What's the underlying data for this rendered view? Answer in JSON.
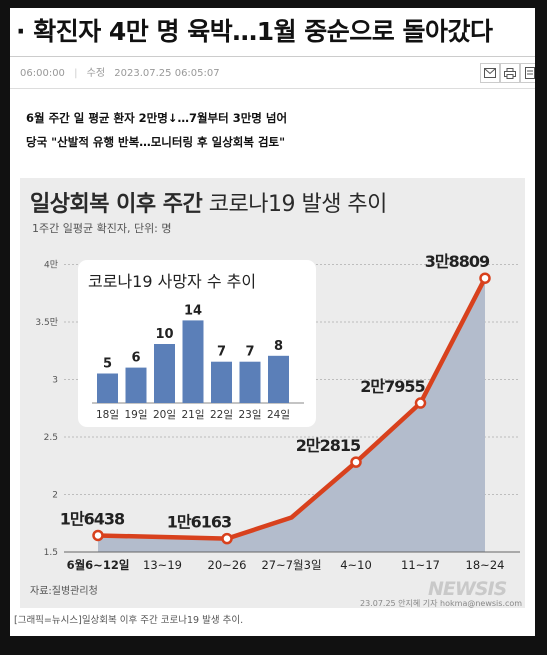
{
  "article": {
    "headline": "· 확진자 4만 명 육박…1월 중순으로 돌아갔다",
    "published_time": "06:00:00",
    "updated_label": "수정",
    "updated_datetime": "2023.07.25 06:05:07",
    "summary_lines": [
      "6월 주간 일 평균 환자 2만명↓…7월부터 3만명 넘어",
      "당국 \"산발적 유행 반복…모니터링 후 일상회복 검토\""
    ],
    "tools": [
      {
        "name": "email",
        "icon": "envelope-icon"
      },
      {
        "name": "print",
        "icon": "printer-icon"
      },
      {
        "name": "more",
        "icon": "document-icon"
      }
    ],
    "caption": "[그래픽=뉴시스]일상회복 이후 주간 코로나19 발생 추이."
  },
  "graphic": {
    "title_bold": "일상회복 이후 주간",
    "title_light": " 코로나19 발생 추이",
    "subtitle": "1주간 일평균 확진자, 단위: 명",
    "source": "자료:질병관리청",
    "credit": "23.07.25 안지혜 기자 hokma@newsis.com",
    "watermark": "NEWSIS",
    "colors": {
      "line": "#d8411d",
      "area": "#b3bccc",
      "inset_bar": "#5b7fb8",
      "background": "#ececec"
    }
  },
  "chart_data": [
    {
      "type": "area",
      "title": "일상회복 이후 주간 코로나19 발생 추이",
      "subtitle": "1주간 일평균 확진자, 단위: 명",
      "categories": [
        "6월6~12일",
        "13~19",
        "20~26",
        "27~7월3일",
        "4~10",
        "11~17",
        "18~24"
      ],
      "values": [
        16438,
        null,
        16163,
        null,
        22815,
        27955,
        38809
      ],
      "values_estimated": [
        16438,
        16300,
        16163,
        18000,
        22815,
        27955,
        38809
      ],
      "data_labels": [
        "1만6438",
        "",
        "1만6163",
        "",
        "2만2815",
        "2만7955",
        "3만8809"
      ],
      "y_ticks": [
        "1.5",
        "2",
        "2.5",
        "3",
        "3.5만",
        "4만"
      ],
      "ylim": [
        15000,
        40000
      ],
      "grid": true
    },
    {
      "type": "bar",
      "title": "코로나19 사망자 수 추이",
      "categories": [
        "18일",
        "19일",
        "20일",
        "21일",
        "22일",
        "23일",
        "24일"
      ],
      "values": [
        5,
        6,
        10,
        14,
        7,
        7,
        8
      ]
    }
  ]
}
